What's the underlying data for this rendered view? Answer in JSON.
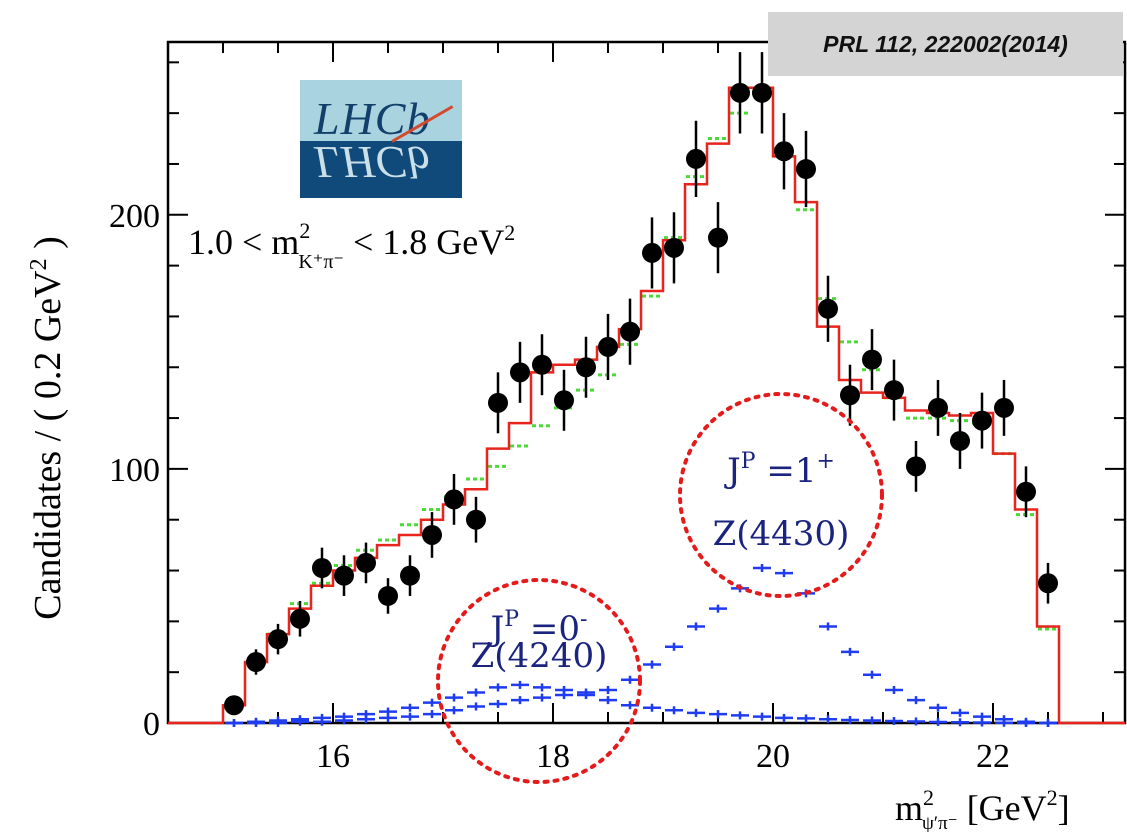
{
  "reference": "PRL 112, 222002(2014)",
  "logo_text": "LHCb",
  "selection": {
    "lhs": "1.0 < m",
    "sub": "K⁺π⁻",
    "sup": "2",
    "rhs": " < 1.8 GeV",
    "rhs_sup": "2"
  },
  "y_axis_title": {
    "main": "Candidates / ( 0.2 GeV",
    "sup": "2",
    "end": " )"
  },
  "x_axis_title": {
    "m": "m",
    "sup": "2",
    "sub": "ψ′π⁻",
    "unit": " [GeV",
    "unit_sup": "2",
    "unit_end": "]"
  },
  "annotations": [
    {
      "jp_label": "J",
      "jp_sup": "P",
      "jp_value": " =0",
      "jp_parity": "-",
      "state": "Z(4240)"
    },
    {
      "jp_label": "J",
      "jp_sup": "P",
      "jp_value": " =1",
      "jp_parity": "+",
      "state": "Z(4430)"
    }
  ],
  "colors": {
    "data": "#000000",
    "fit_total": "#e8241c",
    "fit_alt": "#4dd93a",
    "components": "#1f3cf0",
    "circle": "#e51b1b",
    "annotation_text": "#1a237e"
  },
  "chart_data": {
    "type": "scatter",
    "xlim": [
      14.5,
      23.2
    ],
    "ylim": [
      0,
      268
    ],
    "x_ticks": [
      16,
      18,
      20,
      22
    ],
    "y_ticks": [
      0,
      100,
      200
    ],
    "bin_width": 0.2,
    "series": [
      {
        "kind": "data_points",
        "x": [
          15.1,
          15.3,
          15.5,
          15.7,
          15.9,
          16.1,
          16.3,
          16.5,
          16.7,
          16.9,
          17.1,
          17.3,
          17.5,
          17.7,
          17.9,
          18.1,
          18.3,
          18.5,
          18.7,
          18.9,
          19.1,
          19.3,
          19.5,
          19.7,
          19.9,
          20.1,
          20.3,
          20.5,
          20.7,
          20.9,
          21.1,
          21.3,
          21.5,
          21.7,
          21.9,
          22.1,
          22.3,
          22.5
        ],
        "y": [
          7,
          24,
          33,
          41,
          61,
          58,
          63,
          50,
          58,
          74,
          88,
          80,
          126,
          138,
          141,
          127,
          140,
          148,
          154,
          185,
          187,
          222,
          191,
          248,
          248,
          225,
          218,
          163,
          129,
          143,
          131,
          101,
          124,
          111,
          119,
          124,
          91,
          55
        ],
        "err": [
          3,
          5,
          6,
          7,
          8,
          8,
          8,
          7,
          8,
          9,
          10,
          9,
          12,
          12,
          12,
          12,
          12,
          13,
          13,
          14,
          14,
          15,
          14,
          16,
          16,
          15,
          15,
          13,
          12,
          12,
          12,
          10,
          11,
          11,
          11,
          11,
          10,
          8
        ]
      },
      {
        "kind": "fit_total_step",
        "x_edges": [
          15.0,
          15.2,
          15.4,
          15.6,
          15.8,
          16.0,
          16.2,
          16.4,
          16.6,
          16.8,
          17.0,
          17.2,
          17.4,
          17.6,
          17.8,
          18.0,
          18.2,
          18.4,
          18.6,
          18.8,
          19.0,
          19.2,
          19.4,
          19.6,
          19.8,
          20.0,
          20.2,
          20.4,
          20.6,
          20.8,
          21.0,
          21.2,
          21.4,
          21.6,
          21.8,
          22.0,
          22.2,
          22.4,
          22.6
        ],
        "y": [
          7,
          24,
          35,
          45,
          54,
          60,
          65,
          70,
          74,
          80,
          86,
          92,
          108,
          118,
          138,
          141,
          143,
          148,
          155,
          170,
          190,
          212,
          228,
          250,
          250,
          223,
          205,
          156,
          135,
          130,
          128,
          123,
          122,
          121,
          122,
          106,
          84,
          38
        ]
      },
      {
        "kind": "fit_alt_points",
        "x": [
          15.1,
          15.3,
          15.5,
          15.7,
          15.9,
          16.1,
          16.3,
          16.5,
          16.7,
          16.9,
          17.1,
          17.3,
          17.5,
          17.7,
          17.9,
          18.1,
          18.3,
          18.5,
          18.7,
          18.9,
          19.1,
          19.3,
          19.5,
          19.7,
          19.9,
          20.1,
          20.3,
          20.5,
          20.7,
          20.9,
          21.1,
          21.3,
          21.5,
          21.7,
          21.9,
          22.1,
          22.3,
          22.5
        ],
        "y": [
          6,
          24,
          35,
          47,
          55,
          62,
          68,
          72,
          78,
          84,
          89,
          96,
          101,
          109,
          117,
          124,
          131,
          137,
          149,
          168,
          191,
          215,
          230,
          240,
          248,
          226,
          202,
          167,
          150,
          139,
          128,
          120,
          120,
          119,
          118,
          106,
          82,
          37
        ]
      },
      {
        "kind": "component_Z4240",
        "x": [
          15.1,
          15.3,
          15.5,
          15.7,
          15.9,
          16.1,
          16.3,
          16.5,
          16.7,
          16.9,
          17.1,
          17.3,
          17.5,
          17.7,
          17.9,
          18.1,
          18.3,
          18.5,
          18.7,
          18.9,
          19.1,
          19.3,
          19.5,
          19.7,
          19.9,
          20.1,
          20.3,
          20.5,
          20.7,
          20.9,
          21.1,
          21.3,
          21.5,
          21.7,
          21.9,
          22.1,
          22.3,
          22.5
        ],
        "y": [
          0,
          0.5,
          1,
          1.5,
          2,
          2.5,
          3.5,
          4.5,
          6,
          8,
          10,
          12,
          14,
          15,
          14,
          13,
          11,
          9,
          7,
          6,
          5,
          4,
          3.5,
          3,
          2.5,
          2,
          1.8,
          1.5,
          1.2,
          1,
          0.8,
          0.6,
          0.4,
          0.3,
          0.2,
          0.1,
          0,
          0
        ]
      },
      {
        "kind": "component_Z4430",
        "x": [
          15.1,
          15.3,
          15.5,
          15.7,
          15.9,
          16.1,
          16.3,
          16.5,
          16.7,
          16.9,
          17.1,
          17.3,
          17.5,
          17.7,
          17.9,
          18.1,
          18.3,
          18.5,
          18.7,
          18.9,
          19.1,
          19.3,
          19.5,
          19.7,
          19.9,
          20.1,
          20.3,
          20.5,
          20.7,
          20.9,
          21.1,
          21.3,
          21.5,
          21.7,
          21.9,
          22.1,
          22.3,
          22.5
        ],
        "y": [
          0,
          0,
          0,
          0.5,
          0.5,
          1,
          1.5,
          2,
          2.5,
          3.5,
          5,
          6.5,
          7.5,
          9,
          10,
          11,
          12,
          13,
          17,
          23,
          30,
          38,
          45,
          53,
          61,
          59,
          51,
          38,
          28,
          19,
          13,
          9,
          6,
          4,
          2.5,
          1.5,
          0.5,
          0
        ]
      }
    ]
  }
}
